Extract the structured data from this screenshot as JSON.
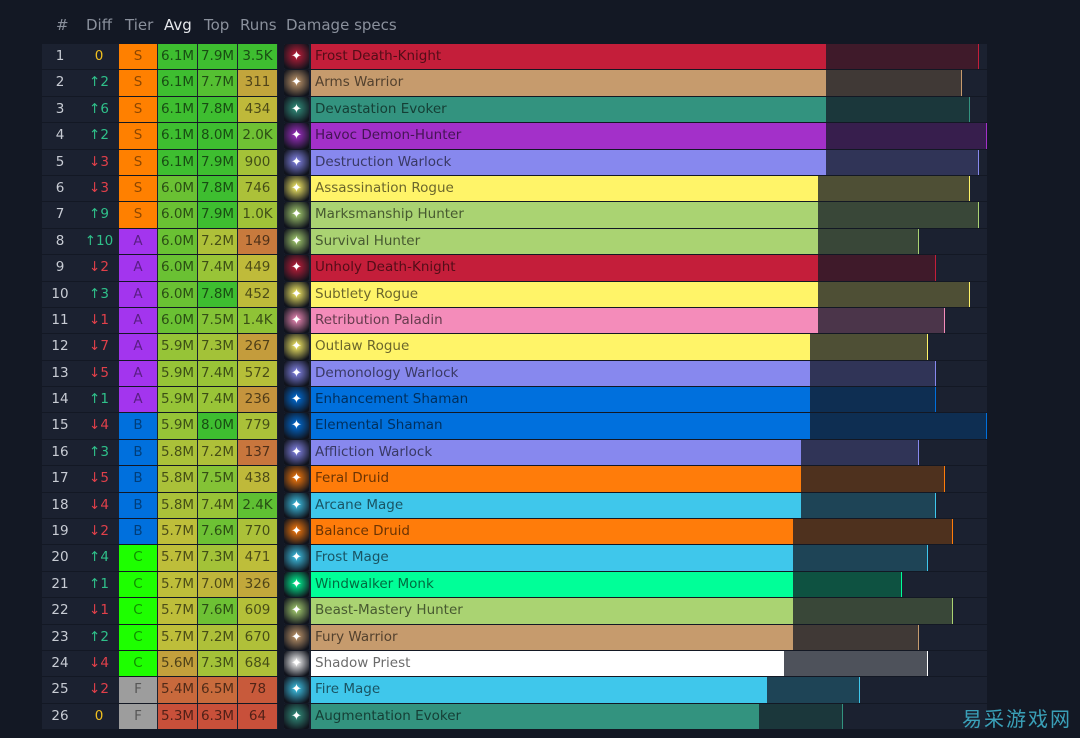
{
  "headers": {
    "num": "#",
    "diff": "Diff",
    "tier": "Tier",
    "avg": "Avg",
    "top": "Top",
    "runs": "Runs",
    "specs": "Damage specs"
  },
  "tier_colors": {
    "S": "#ff8000",
    "A": "#a335ee",
    "B": "#0070dd",
    "C": "#1eff00",
    "F": "#9d9d9d"
  },
  "scale_max_m": 8.0,
  "rows": [
    {
      "rank": "1",
      "diff": "0",
      "dir": "none",
      "tier": "S",
      "avg": "6.1M",
      "top": "7.9M",
      "runs": "3.5K",
      "spec": "Frost Death-Knight",
      "color": "#c41e3a",
      "icon": "frost-death-knight-icon"
    },
    {
      "rank": "2",
      "diff": "↑2",
      "dir": "up",
      "tier": "S",
      "avg": "6.1M",
      "top": "7.7M",
      "runs": "311",
      "spec": "Arms Warrior",
      "color": "#c69b6d",
      "icon": "arms-warrior-icon"
    },
    {
      "rank": "3",
      "diff": "↑6",
      "dir": "up",
      "tier": "S",
      "avg": "6.1M",
      "top": "7.8M",
      "runs": "434",
      "spec": "Devastation Evoker",
      "color": "#33937f",
      "icon": "devastation-evoker-icon"
    },
    {
      "rank": "4",
      "diff": "↑2",
      "dir": "up",
      "tier": "S",
      "avg": "6.1M",
      "top": "8.0M",
      "runs": "2.0K",
      "spec": "Havoc Demon-Hunter",
      "color": "#a330c9",
      "icon": "havoc-demon-hunter-icon"
    },
    {
      "rank": "5",
      "diff": "↓3",
      "dir": "down",
      "tier": "S",
      "avg": "6.1M",
      "top": "7.9M",
      "runs": "900",
      "spec": "Destruction Warlock",
      "color": "#8788ee",
      "icon": "destruction-warlock-icon"
    },
    {
      "rank": "6",
      "diff": "↓3",
      "dir": "down",
      "tier": "S",
      "avg": "6.0M",
      "top": "7.8M",
      "runs": "746",
      "spec": "Assassination Rogue",
      "color": "#fff468",
      "icon": "assassination-rogue-icon"
    },
    {
      "rank": "7",
      "diff": "↑9",
      "dir": "up",
      "tier": "S",
      "avg": "6.0M",
      "top": "7.9M",
      "runs": "1.0K",
      "spec": "Marksmanship Hunter",
      "color": "#aad372",
      "icon": "marksmanship-hunter-icon"
    },
    {
      "rank": "8",
      "diff": "↑10",
      "dir": "up",
      "tier": "A",
      "avg": "6.0M",
      "top": "7.2M",
      "runs": "149",
      "spec": "Survival Hunter",
      "color": "#aad372",
      "icon": "survival-hunter-icon"
    },
    {
      "rank": "9",
      "diff": "↓2",
      "dir": "down",
      "tier": "A",
      "avg": "6.0M",
      "top": "7.4M",
      "runs": "449",
      "spec": "Unholy Death-Knight",
      "color": "#c41e3a",
      "icon": "unholy-death-knight-icon"
    },
    {
      "rank": "10",
      "diff": "↑3",
      "dir": "up",
      "tier": "A",
      "avg": "6.0M",
      "top": "7.8M",
      "runs": "452",
      "spec": "Subtlety Rogue",
      "color": "#fff468",
      "icon": "subtlety-rogue-icon"
    },
    {
      "rank": "11",
      "diff": "↓1",
      "dir": "down",
      "tier": "A",
      "avg": "6.0M",
      "top": "7.5M",
      "runs": "1.4K",
      "spec": "Retribution Paladin",
      "color": "#f48cba",
      "icon": "retribution-paladin-icon"
    },
    {
      "rank": "12",
      "diff": "↓7",
      "dir": "down",
      "tier": "A",
      "avg": "5.9M",
      "top": "7.3M",
      "runs": "267",
      "spec": "Outlaw Rogue",
      "color": "#fff468",
      "icon": "outlaw-rogue-icon"
    },
    {
      "rank": "13",
      "diff": "↓5",
      "dir": "down",
      "tier": "A",
      "avg": "5.9M",
      "top": "7.4M",
      "runs": "572",
      "spec": "Demonology Warlock",
      "color": "#8788ee",
      "icon": "demonology-warlock-icon"
    },
    {
      "rank": "14",
      "diff": "↑1",
      "dir": "up",
      "tier": "A",
      "avg": "5.9M",
      "top": "7.4M",
      "runs": "236",
      "spec": "Enhancement Shaman",
      "color": "#0070dd",
      "icon": "enhancement-shaman-icon"
    },
    {
      "rank": "15",
      "diff": "↓4",
      "dir": "down",
      "tier": "B",
      "avg": "5.9M",
      "top": "8.0M",
      "runs": "779",
      "spec": "Elemental Shaman",
      "color": "#0070dd",
      "icon": "elemental-shaman-icon"
    },
    {
      "rank": "16",
      "diff": "↑3",
      "dir": "up",
      "tier": "B",
      "avg": "5.8M",
      "top": "7.2M",
      "runs": "137",
      "spec": "Affliction Warlock",
      "color": "#8788ee",
      "icon": "affliction-warlock-icon"
    },
    {
      "rank": "17",
      "diff": "↓5",
      "dir": "down",
      "tier": "B",
      "avg": "5.8M",
      "top": "7.5M",
      "runs": "438",
      "spec": "Feral Druid",
      "color": "#ff7c0a",
      "icon": "feral-druid-icon"
    },
    {
      "rank": "18",
      "diff": "↓4",
      "dir": "down",
      "tier": "B",
      "avg": "5.8M",
      "top": "7.4M",
      "runs": "2.4K",
      "spec": "Arcane Mage",
      "color": "#3fc7eb",
      "icon": "arcane-mage-icon"
    },
    {
      "rank": "19",
      "diff": "↓2",
      "dir": "down",
      "tier": "B",
      "avg": "5.7M",
      "top": "7.6M",
      "runs": "770",
      "spec": "Balance Druid",
      "color": "#ff7c0a",
      "icon": "balance-druid-icon"
    },
    {
      "rank": "20",
      "diff": "↑4",
      "dir": "up",
      "tier": "C",
      "avg": "5.7M",
      "top": "7.3M",
      "runs": "471",
      "spec": "Frost Mage",
      "color": "#3fc7eb",
      "icon": "frost-mage-icon"
    },
    {
      "rank": "21",
      "diff": "↑1",
      "dir": "up",
      "tier": "C",
      "avg": "5.7M",
      "top": "7.0M",
      "runs": "326",
      "spec": "Windwalker Monk",
      "color": "#00ff98",
      "icon": "windwalker-monk-icon"
    },
    {
      "rank": "22",
      "diff": "↓1",
      "dir": "down",
      "tier": "C",
      "avg": "5.7M",
      "top": "7.6M",
      "runs": "609",
      "spec": "Beast-Mastery Hunter",
      "color": "#aad372",
      "icon": "beast-mastery-hunter-icon"
    },
    {
      "rank": "23",
      "diff": "↑2",
      "dir": "up",
      "tier": "C",
      "avg": "5.7M",
      "top": "7.2M",
      "runs": "670",
      "spec": "Fury Warrior",
      "color": "#c69b6d",
      "icon": "fury-warrior-icon"
    },
    {
      "rank": "24",
      "diff": "↓4",
      "dir": "down",
      "tier": "C",
      "avg": "5.6M",
      "top": "7.3M",
      "runs": "684",
      "spec": "Shadow Priest",
      "color": "#ffffff",
      "icon": "shadow-priest-icon"
    },
    {
      "rank": "25",
      "diff": "↓2",
      "dir": "down",
      "tier": "F",
      "avg": "5.4M",
      "top": "6.5M",
      "runs": "78",
      "spec": "Fire Mage",
      "color": "#3fc7eb",
      "icon": "fire-mage-icon"
    },
    {
      "rank": "26",
      "diff": "0",
      "dir": "none",
      "tier": "F",
      "avg": "5.3M",
      "top": "6.3M",
      "runs": "64",
      "spec": "Augmentation Evoker",
      "color": "#33937f",
      "icon": "augmentation-evoker-icon"
    }
  ],
  "diff_colors": {
    "up": "#2fc08a",
    "down": "#e0404a",
    "none": "#f0c020"
  },
  "watermark": "易采游戏网"
}
